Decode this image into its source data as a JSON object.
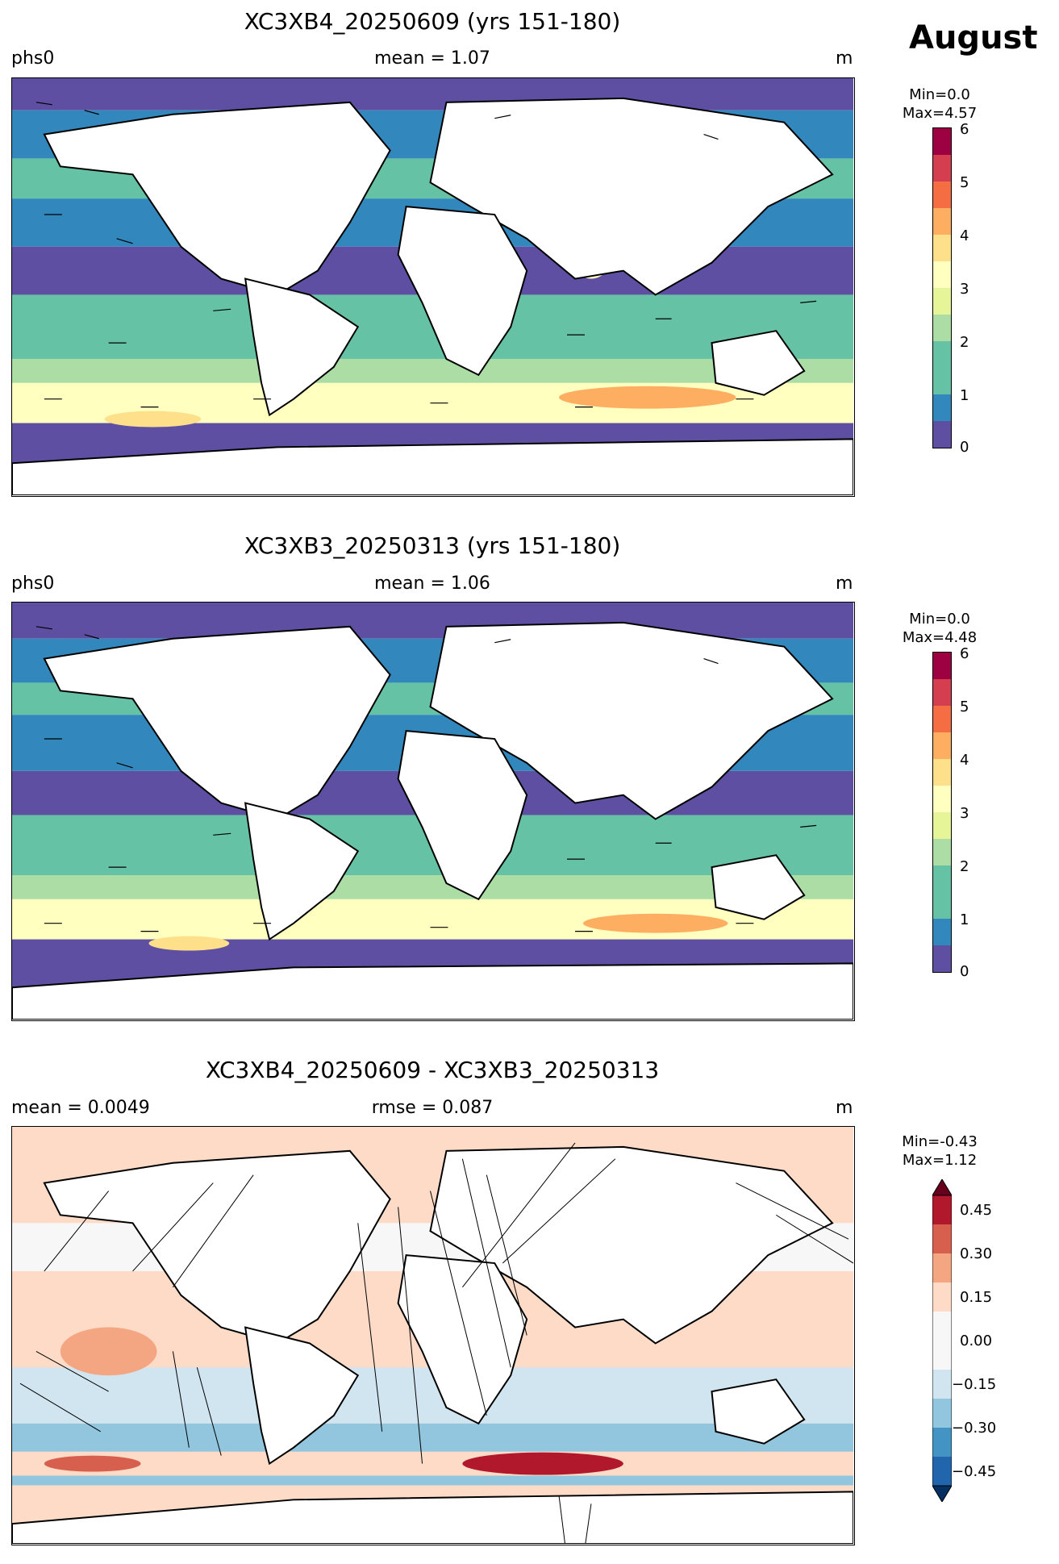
{
  "figure": {
    "month": "August"
  },
  "panels": [
    {
      "title": "XC3XB4_20250609 (yrs 151-180)",
      "left_label": "phs0",
      "center_label": "mean = 1.07",
      "units": "m",
      "colorbar": {
        "min_text": "Min=0.0",
        "max_text": "Max=4.57",
        "ticks": [
          "0",
          "1",
          "2",
          "3",
          "4",
          "5",
          "6"
        ]
      }
    },
    {
      "title": "XC3XB3_20250313 (yrs 151-180)",
      "left_label": "phs0",
      "center_label": "mean = 1.06",
      "units": "m",
      "colorbar": {
        "min_text": "Min=0.0",
        "max_text": "Max=4.48",
        "ticks": [
          "0",
          "1",
          "2",
          "3",
          "4",
          "5",
          "6"
        ]
      }
    },
    {
      "title": "XC3XB4_20250609 - XC3XB3_20250313",
      "left_label": "mean = 0.0049",
      "center_label": "rmse = 0.087",
      "units": "m",
      "colorbar": {
        "min_text": "Min=-0.43",
        "max_text": "Max=1.12",
        "ticks": [
          "0.45",
          "0.30",
          "0.15",
          "0.00",
          "−0.15",
          "−0.30",
          "−0.45"
        ]
      }
    }
  ],
  "chart_data": [
    {
      "type": "heatmap",
      "title": "XC3XB4_20250609 (yrs 151-180)",
      "variable": "phs0",
      "units": "m",
      "mean": 1.07,
      "min": 0.0,
      "max": 4.57,
      "colorbar_range": [
        0,
        6
      ],
      "colorbar_ticks": [
        0,
        1,
        2,
        3,
        4,
        5,
        6
      ],
      "levels": [
        0,
        0.5,
        1,
        1.5,
        2,
        2.5,
        3,
        3.5,
        4,
        4.5,
        5,
        5.5,
        6
      ],
      "colormap": [
        "#5e4fa2",
        "#3288bd",
        "#3288bd",
        "#66c2a5",
        "#66c2a5",
        "#abdda4",
        "#e6f598",
        "#ffffbf",
        "#fee08b",
        "#fdae61",
        "#f46d43",
        "#d53e4f",
        "#9e0142"
      ],
      "vectors": true
    },
    {
      "type": "heatmap",
      "title": "XC3XB3_20250313 (yrs 151-180)",
      "variable": "phs0",
      "units": "m",
      "mean": 1.06,
      "min": 0.0,
      "max": 4.48,
      "colorbar_range": [
        0,
        6
      ],
      "colorbar_ticks": [
        0,
        1,
        2,
        3,
        4,
        5,
        6
      ],
      "levels": [
        0,
        0.5,
        1,
        1.5,
        2,
        2.5,
        3,
        3.5,
        4,
        4.5,
        5,
        5.5,
        6
      ],
      "colormap": [
        "#5e4fa2",
        "#3288bd",
        "#3288bd",
        "#66c2a5",
        "#66c2a5",
        "#abdda4",
        "#e6f598",
        "#ffffbf",
        "#fee08b",
        "#fdae61",
        "#f46d43",
        "#d53e4f",
        "#9e0142"
      ],
      "vectors": true
    },
    {
      "type": "heatmap",
      "title": "XC3XB4_20250609 - XC3XB3_20250313",
      "units": "m",
      "mean": 0.0049,
      "rmse": 0.087,
      "min": -0.43,
      "max": 1.12,
      "colorbar_range": [
        -0.5,
        0.5
      ],
      "colorbar_ticks": [
        -0.45,
        -0.3,
        -0.15,
        0.0,
        0.15,
        0.3,
        0.45
      ],
      "colormap": [
        "#053061",
        "#2166ac",
        "#4393c3",
        "#92c5de",
        "#d1e5f0",
        "#f7f7f7",
        "#fddbc7",
        "#f4a582",
        "#d6604d",
        "#b2182b",
        "#67001f"
      ],
      "extend": "both",
      "vectors": true
    }
  ]
}
